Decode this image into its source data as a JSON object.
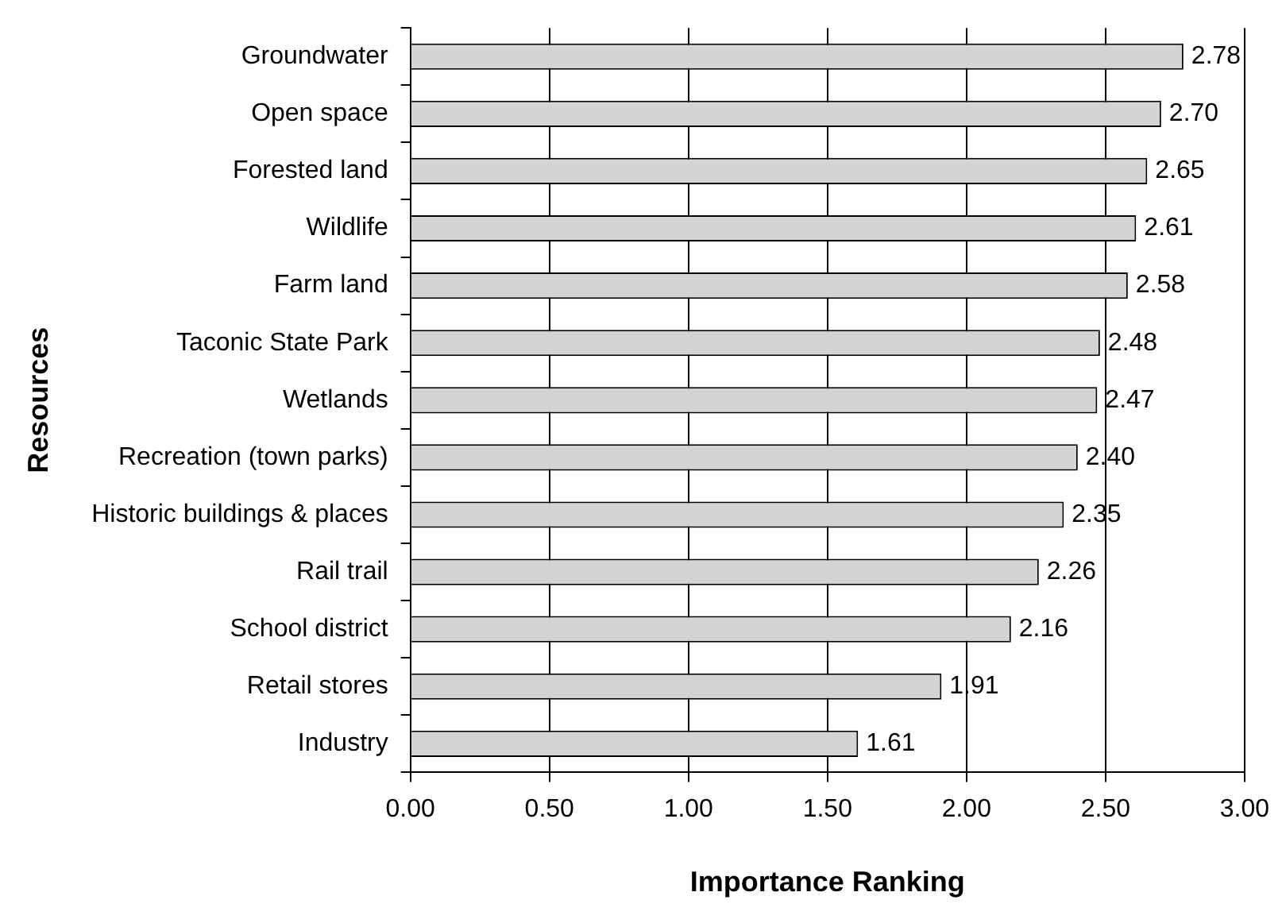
{
  "chart_data": {
    "type": "bar",
    "orientation": "horizontal",
    "xlabel": "Importance Ranking",
    "ylabel": "Resources",
    "categories": [
      "Groundwater",
      "Open space",
      "Forested land",
      "Wildlife",
      "Farm land",
      "Taconic State Park",
      "Wetlands",
      "Recreation (town parks)",
      "Historic buildings & places",
      "Rail trail",
      "School district",
      "Retail stores",
      "Industry"
    ],
    "values": [
      2.78,
      2.7,
      2.65,
      2.61,
      2.58,
      2.48,
      2.47,
      2.4,
      2.35,
      2.26,
      2.16,
      1.91,
      1.61
    ],
    "value_labels": [
      "2.78",
      "2.70",
      "2.65",
      "2.61",
      "2.58",
      "2.48",
      "2.47",
      "2.40",
      "2.35",
      "2.26",
      "2.16",
      "1.91",
      "1.61"
    ],
    "color": "#d4d4d4",
    "xlim": [
      0,
      3
    ],
    "xticks": [
      {
        "value": 0,
        "label": "0.00"
      },
      {
        "value": 0.5,
        "label": "0.50"
      },
      {
        "value": 1,
        "label": "1.00"
      },
      {
        "value": 1.5,
        "label": "1.50"
      },
      {
        "value": 2,
        "label": "2.00"
      },
      {
        "value": 2.5,
        "label": "2.50"
      },
      {
        "value": 3,
        "label": "3.00"
      }
    ],
    "grid": "x",
    "legend": false
  }
}
